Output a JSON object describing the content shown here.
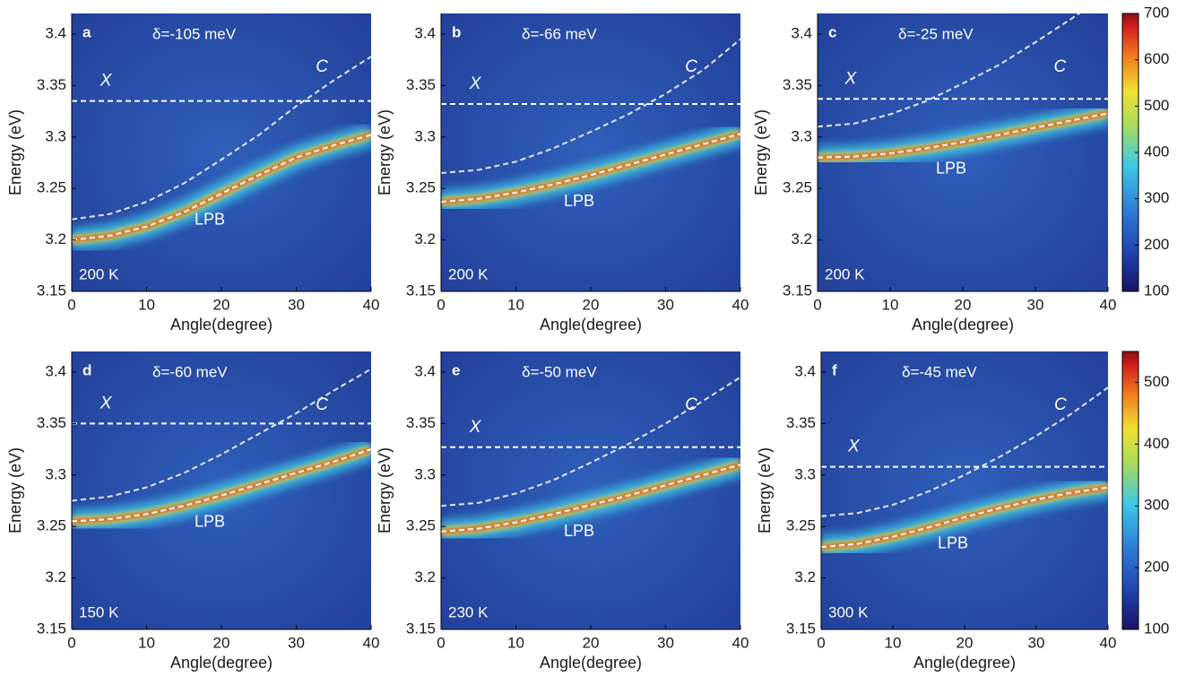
{
  "chart_data": [
    {
      "type": "line",
      "panel_label": "a",
      "annotation": "δ=-105 meV",
      "temperature": "200 K",
      "xlabel": "Angle(degree)",
      "ylabel": "Energy (eV)",
      "xlim": [
        0,
        40
      ],
      "ylim": [
        3.15,
        3.42
      ],
      "xticks": [
        0,
        10,
        20,
        30,
        40
      ],
      "yticks": [
        3.15,
        3.2,
        3.25,
        3.3,
        3.35,
        3.4
      ],
      "x": [
        0,
        5,
        10,
        15,
        20,
        25,
        30,
        35,
        40
      ],
      "series": [
        {
          "name": "X",
          "color": "#ffffff",
          "values": [
            3.335,
            3.335,
            3.335,
            3.335,
            3.335,
            3.335,
            3.335,
            3.335,
            3.335
          ]
        },
        {
          "name": "C",
          "color": "#e8e8f0",
          "values": [
            3.22,
            3.225,
            3.237,
            3.255,
            3.278,
            3.302,
            3.33,
            3.355,
            3.378
          ]
        },
        {
          "name": "LPB",
          "color": "#ffffff",
          "values": [
            3.2,
            3.204,
            3.213,
            3.227,
            3.245,
            3.263,
            3.28,
            3.292,
            3.302
          ]
        }
      ]
    },
    {
      "type": "line",
      "panel_label": "b",
      "annotation": "δ=-66 meV",
      "temperature": "200 K",
      "xlabel": "Angle(degree)",
      "ylabel": "Energy (eV)",
      "xlim": [
        0,
        40
      ],
      "ylim": [
        3.15,
        3.42
      ],
      "xticks": [
        0,
        10,
        20,
        30,
        40
      ],
      "yticks": [
        3.15,
        3.2,
        3.25,
        3.3,
        3.35,
        3.4
      ],
      "x": [
        0,
        5,
        10,
        15,
        20,
        25,
        30,
        35,
        40
      ],
      "series": [
        {
          "name": "X",
          "color": "#ffffff",
          "values": [
            3.332,
            3.332,
            3.332,
            3.332,
            3.332,
            3.332,
            3.332,
            3.332,
            3.332
          ]
        },
        {
          "name": "C",
          "color": "#e8e8f0",
          "values": [
            3.265,
            3.268,
            3.276,
            3.289,
            3.305,
            3.322,
            3.342,
            3.365,
            3.395
          ]
        },
        {
          "name": "LPB",
          "color": "#ffffff",
          "values": [
            3.237,
            3.24,
            3.246,
            3.254,
            3.263,
            3.273,
            3.283,
            3.293,
            3.303
          ]
        }
      ]
    },
    {
      "type": "line",
      "panel_label": "c",
      "annotation": "δ=-25 meV",
      "temperature": "200 K",
      "xlabel": "Angle(degree)",
      "ylabel": "Energy (eV)",
      "xlim": [
        0,
        40
      ],
      "ylim": [
        3.15,
        3.42
      ],
      "xticks": [
        0,
        10,
        20,
        30,
        40
      ],
      "yticks": [
        3.15,
        3.2,
        3.25,
        3.3,
        3.35,
        3.4
      ],
      "x": [
        0,
        5,
        10,
        15,
        20,
        25,
        30,
        35,
        40
      ],
      "series": [
        {
          "name": "X",
          "color": "#ffffff",
          "values": [
            3.337,
            3.337,
            3.337,
            3.337,
            3.337,
            3.337,
            3.337,
            3.337,
            3.337
          ]
        },
        {
          "name": "C",
          "color": "#e8e8f0",
          "values": [
            3.31,
            3.313,
            3.322,
            3.335,
            3.352,
            3.37,
            3.392,
            3.415,
            3.44
          ]
        },
        {
          "name": "LPB",
          "color": "#ffffff",
          "values": [
            3.28,
            3.281,
            3.284,
            3.289,
            3.295,
            3.302,
            3.309,
            3.316,
            3.323
          ]
        }
      ],
      "colorbar": {
        "lim": [
          100,
          700
        ],
        "ticks": [
          100,
          200,
          300,
          400,
          500,
          600,
          700
        ]
      }
    },
    {
      "type": "line",
      "panel_label": "d",
      "annotation": "δ=-60 meV",
      "temperature": "150 K",
      "xlabel": "Angle(degree)",
      "ylabel": "Energy (eV)",
      "xlim": [
        0,
        40
      ],
      "ylim": [
        3.15,
        3.42
      ],
      "xticks": [
        0,
        10,
        20,
        30,
        40
      ],
      "yticks": [
        3.15,
        3.2,
        3.25,
        3.3,
        3.35,
        3.4
      ],
      "x": [
        0,
        5,
        10,
        15,
        20,
        25,
        30,
        35,
        40
      ],
      "series": [
        {
          "name": "X",
          "color": "#ffffff",
          "values": [
            3.35,
            3.35,
            3.35,
            3.35,
            3.35,
            3.35,
            3.35,
            3.35,
            3.35
          ]
        },
        {
          "name": "C",
          "color": "#e8e8f0",
          "values": [
            3.275,
            3.279,
            3.288,
            3.302,
            3.32,
            3.34,
            3.36,
            3.382,
            3.403
          ]
        },
        {
          "name": "LPB",
          "color": "#ffffff",
          "values": [
            3.255,
            3.257,
            3.262,
            3.27,
            3.28,
            3.291,
            3.302,
            3.313,
            3.325
          ]
        }
      ]
    },
    {
      "type": "line",
      "panel_label": "e",
      "annotation": "δ=-50 meV",
      "temperature": "230 K",
      "xlabel": "Angle(degree)",
      "ylabel": "Energy (eV)",
      "xlim": [
        0,
        40
      ],
      "ylim": [
        3.15,
        3.42
      ],
      "xticks": [
        0,
        10,
        20,
        30,
        40
      ],
      "yticks": [
        3.15,
        3.2,
        3.25,
        3.3,
        3.35,
        3.4
      ],
      "x": [
        0,
        5,
        10,
        15,
        20,
        25,
        30,
        35,
        40
      ],
      "series": [
        {
          "name": "X",
          "color": "#ffffff",
          "values": [
            3.327,
            3.327,
            3.327,
            3.327,
            3.327,
            3.327,
            3.327,
            3.327,
            3.327
          ]
        },
        {
          "name": "C",
          "color": "#e8e8f0",
          "values": [
            3.27,
            3.273,
            3.282,
            3.295,
            3.312,
            3.33,
            3.35,
            3.372,
            3.395
          ]
        },
        {
          "name": "LPB",
          "color": "#ffffff",
          "values": [
            3.245,
            3.248,
            3.254,
            3.262,
            3.271,
            3.28,
            3.29,
            3.3,
            3.31
          ]
        }
      ]
    },
    {
      "type": "line",
      "panel_label": "f",
      "annotation": "δ=-45 meV",
      "temperature": "300 K",
      "xlabel": "Angle(degree)",
      "ylabel": "Energy (eV)",
      "xlim": [
        0,
        40
      ],
      "ylim": [
        3.15,
        3.42
      ],
      "xticks": [
        0,
        10,
        20,
        30,
        40
      ],
      "yticks": [
        3.15,
        3.2,
        3.25,
        3.3,
        3.35,
        3.4
      ],
      "x": [
        0,
        5,
        10,
        15,
        20,
        25,
        30,
        35,
        40
      ],
      "series": [
        {
          "name": "X",
          "color": "#ffffff",
          "values": [
            3.308,
            3.308,
            3.308,
            3.308,
            3.308,
            3.308,
            3.308,
            3.308,
            3.308
          ]
        },
        {
          "name": "C",
          "color": "#e8e8f0",
          "values": [
            3.26,
            3.263,
            3.271,
            3.284,
            3.3,
            3.318,
            3.338,
            3.36,
            3.385
          ]
        },
        {
          "name": "LPB",
          "color": "#ffffff",
          "values": [
            3.23,
            3.233,
            3.24,
            3.249,
            3.259,
            3.268,
            3.276,
            3.283,
            3.288
          ]
        }
      ],
      "colorbar": {
        "lim": [
          100,
          550
        ],
        "ticks": [
          100,
          200,
          300,
          400,
          500
        ]
      }
    }
  ]
}
